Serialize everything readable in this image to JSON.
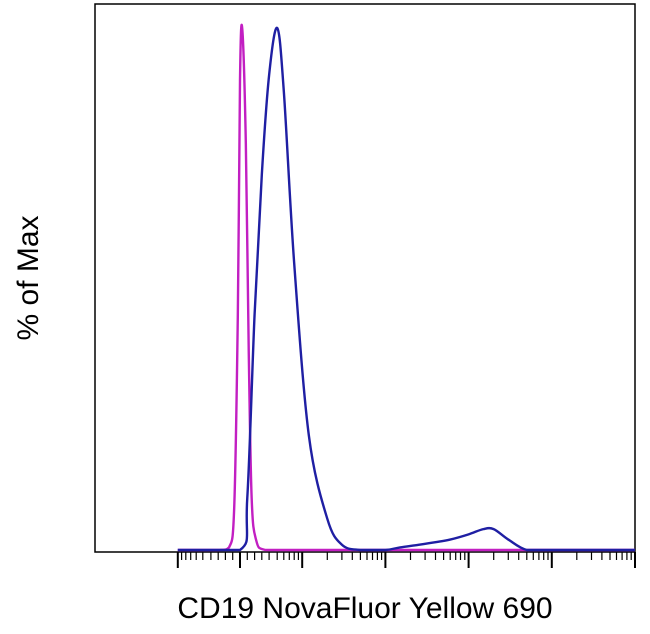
{
  "chart_data": {
    "type": "line",
    "title": "",
    "xlabel": "CD19 NovaFluor Yellow 690",
    "ylabel": "% of Max",
    "x_scale": "log",
    "x_ticks_labeled": false,
    "y_ticks_labeled": false,
    "grid": false,
    "legend": "none",
    "xlim": [
      -100,
      1000000
    ],
    "ylim": [
      0,
      100
    ],
    "series": [
      {
        "color": "#c21fc2",
        "x": [
          -100,
          -30,
          -15,
          -8,
          -3,
          0,
          3,
          8,
          12,
          16,
          22,
          35,
          100,
          1000,
          10000,
          100000,
          1000000
        ],
        "y": [
          0,
          0,
          0.5,
          8,
          45,
          90,
          100,
          78,
          38,
          10,
          2,
          0,
          0,
          0,
          0,
          0,
          0
        ]
      },
      {
        "color": "#1f1fa3",
        "x": [
          -100,
          0,
          10,
          20,
          30,
          40,
          50,
          60,
          80,
          120,
          200,
          300,
          500,
          1000,
          1500,
          2500,
          4000,
          6000,
          10000,
          15000,
          20000,
          30000,
          50000,
          100000,
          1000000
        ],
        "y": [
          0,
          0,
          10,
          45,
          72,
          91,
          100,
          88,
          55,
          22,
          6,
          1,
          0,
          0,
          0.5,
          1,
          1.5,
          2,
          3,
          4,
          4,
          2,
          0,
          0,
          0
        ]
      }
    ]
  }
}
